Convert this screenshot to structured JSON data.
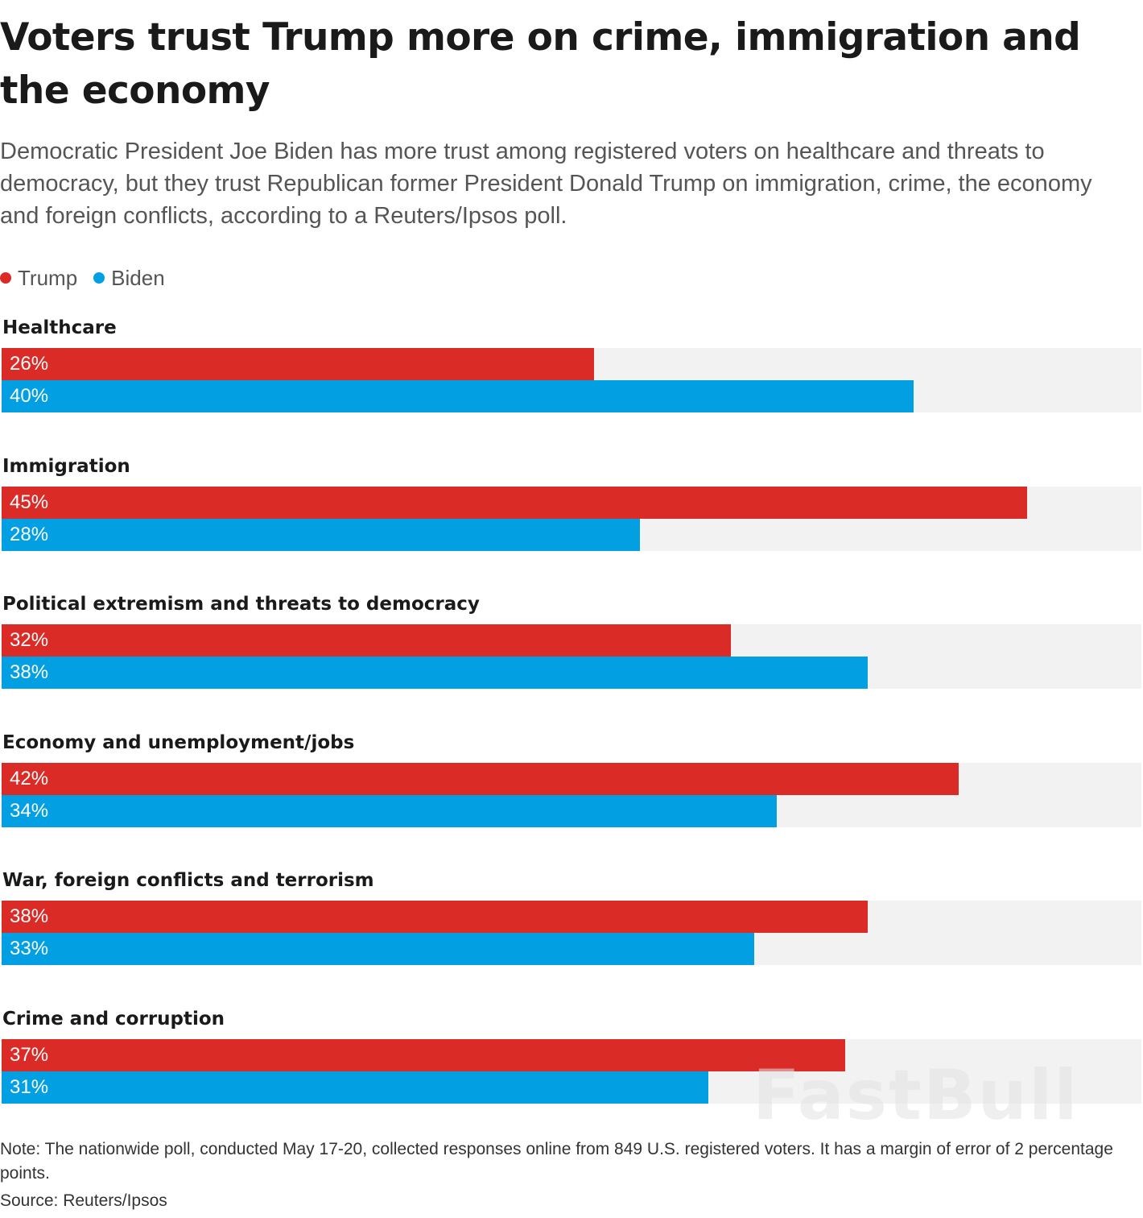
{
  "title": "Voters trust Trump more on crime, immigration and the economy",
  "subtitle": "Democratic President Joe Biden has more trust among registered voters on healthcare and threats to democracy, but they trust Republican former President Donald Trump on immigration, crime, the economy and foreign conflicts, according to a Reuters/Ipsos poll.",
  "watermark": "FastBull",
  "note": "Note: The nationwide poll, conducted May 17-20, collected responses online from 849 U.S. registered voters. It has a margin of error of 2 percentage points.",
  "source": "Source: Reuters/Ipsos",
  "colors": {
    "trump": "#db2b27",
    "biden": "#029fe3",
    "track": "#f2f2f2"
  },
  "chart_data": {
    "type": "bar",
    "orientation": "horizontal",
    "title": "Voters trust Trump more on crime, immigration and the economy",
    "unit": "%",
    "xlim": [
      0,
      50
    ],
    "legend": [
      {
        "name": "Trump",
        "color": "#db2b27"
      },
      {
        "name": "Biden",
        "color": "#029fe3"
      }
    ],
    "categories": [
      "Healthcare",
      "Immigration",
      "Political extremism and threats to democracy",
      "Economy and unemployment/jobs",
      "War, foreign conflicts and terrorism",
      "Crime and corruption"
    ],
    "series": [
      {
        "name": "Trump",
        "values": [
          26,
          45,
          32,
          42,
          38,
          37
        ]
      },
      {
        "name": "Biden",
        "values": [
          40,
          28,
          38,
          34,
          33,
          31
        ]
      }
    ]
  }
}
